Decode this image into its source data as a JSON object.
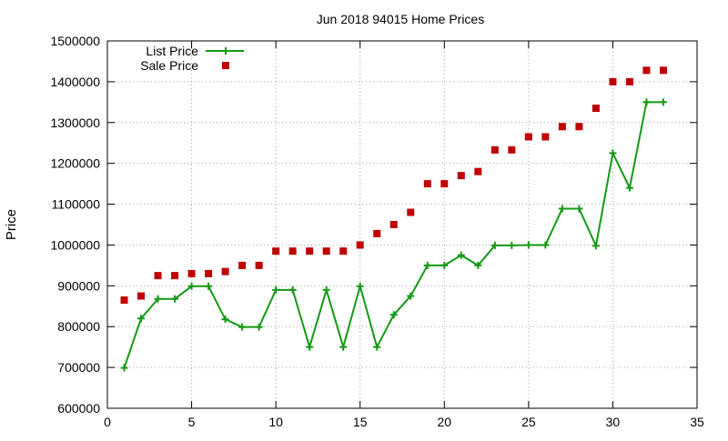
{
  "chart_data": {
    "type": "line",
    "title": "Jun 2018 94015 Home Prices",
    "xlabel": "",
    "ylabel": "Price",
    "xlim": [
      0,
      35
    ],
    "ylim": [
      600000,
      1500000
    ],
    "xticks": [
      0,
      5,
      10,
      15,
      20,
      25,
      30,
      35
    ],
    "yticks": [
      600000,
      700000,
      800000,
      900000,
      1000000,
      1100000,
      1200000,
      1300000,
      1400000,
      1500000
    ],
    "grid": true,
    "legend_position": "top-left",
    "series": [
      {
        "name": "List Price",
        "style": "line-with-plus-markers",
        "color": "#149914",
        "x": [
          1,
          2,
          3,
          4,
          5,
          6,
          7,
          8,
          9,
          10,
          11,
          12,
          13,
          14,
          15,
          16,
          17,
          18,
          19,
          20,
          21,
          22,
          23,
          24,
          25,
          26,
          27,
          28,
          29,
          30,
          31,
          32,
          33
        ],
        "y": [
          699000,
          820000,
          868000,
          868000,
          899000,
          899000,
          818000,
          799000,
          799000,
          890000,
          890000,
          750000,
          890000,
          750000,
          899000,
          750000,
          829000,
          875000,
          950000,
          950000,
          975000,
          950000,
          999000,
          999000,
          1000000,
          1000000,
          1089000,
          1089000,
          998000,
          1225000,
          1140000,
          1350000,
          1350000
        ]
      },
      {
        "name": "Sale Price",
        "style": "square-markers",
        "color": "#c00000",
        "x": [
          1,
          2,
          3,
          4,
          5,
          6,
          7,
          8,
          9,
          10,
          11,
          12,
          13,
          14,
          15,
          16,
          17,
          18,
          19,
          20,
          21,
          22,
          23,
          24,
          25,
          26,
          27,
          28,
          29,
          30,
          31,
          32,
          33
        ],
        "y": [
          865000,
          875000,
          925000,
          925000,
          930000,
          930000,
          935000,
          950000,
          950000,
          985000,
          985000,
          985000,
          985000,
          985000,
          1000000,
          1028000,
          1050000,
          1080000,
          1150000,
          1150000,
          1170000,
          1180000,
          1233000,
          1233000,
          1265000,
          1265000,
          1290000,
          1290000,
          1335000,
          1400000,
          1400000,
          1428000,
          1428000
        ]
      }
    ]
  }
}
